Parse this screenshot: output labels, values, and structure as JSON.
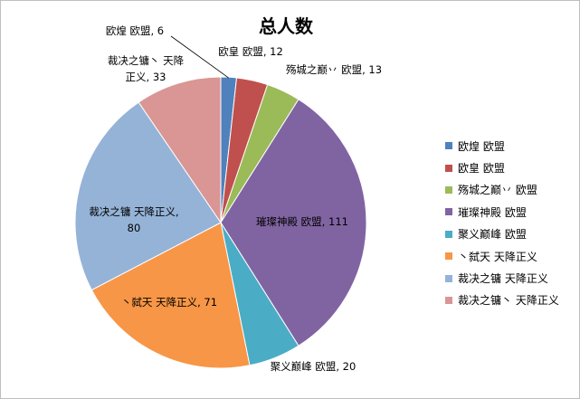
{
  "chart_data": {
    "type": "pie",
    "title": "总人数",
    "total_label": "",
    "legend_placement": "right",
    "start_angle_deg": 0,
    "direction": "clockwise",
    "slices": [
      {
        "name": "欧煌 欧盟",
        "value": 6,
        "color": "#4F81BD",
        "label_lines": [
          "欧煌 欧盟, 6"
        ]
      },
      {
        "name": "欧皇 欧盟",
        "value": 12,
        "color": "#C0504D",
        "label_lines": [
          "欧皇 欧盟, 12"
        ]
      },
      {
        "name": "殇城之巅丷 欧盟",
        "value": 13,
        "color": "#9BBB59",
        "label_lines": [
          "殇城之巅丷 欧盟, 13"
        ]
      },
      {
        "name": "璀璨神殿 欧盟",
        "value": 111,
        "color": "#8064A2",
        "label_lines": [
          "璀璨神殿 欧盟, 111"
        ]
      },
      {
        "name": "聚义巅峰 欧盟",
        "value": 20,
        "color": "#4BACC6",
        "label_lines": [
          "聚义巅峰 欧盟, 20"
        ]
      },
      {
        "name": "丶弑天 天降正义",
        "value": 71,
        "color": "#F79646",
        "label_lines": [
          "丶弑天 天降正义, 71"
        ]
      },
      {
        "name": "裁决之镛 天降正义",
        "value": 80,
        "color": "#95B3D7",
        "label_lines": [
          "裁决之镛 天降正义,",
          "80"
        ]
      },
      {
        "name": "裁决之镛丶 天降正义",
        "value": 33,
        "color": "#D99694",
        "label_lines": [
          "裁决之镛丶  天降",
          "正义, 33"
        ]
      }
    ]
  }
}
